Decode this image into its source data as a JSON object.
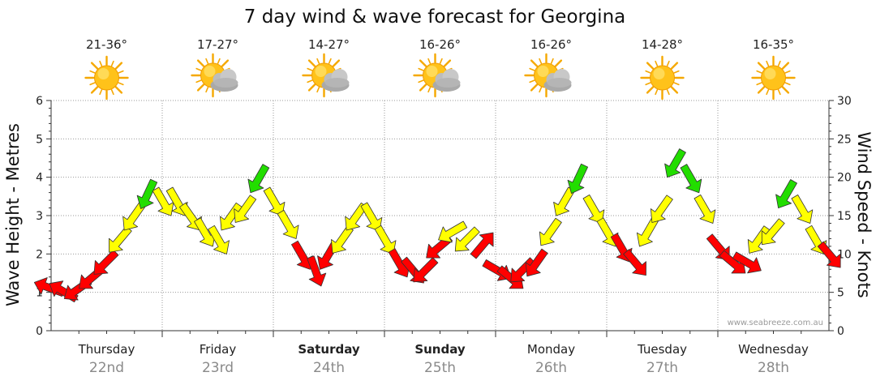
{
  "chart_data": {
    "type": "scatter",
    "title": "7 day wind & wave forecast for Georgina",
    "ylabel_left": "Wave Height - Metres",
    "ylabel_right": "Wind Speed - Knots",
    "ylim_left": [
      0,
      6
    ],
    "ylim_right": [
      0,
      30
    ],
    "left_ticks": [
      "0",
      "1",
      "2",
      "3",
      "4",
      "5",
      "6"
    ],
    "right_ticks": [
      "0",
      "5",
      "10",
      "15",
      "20",
      "25",
      "30"
    ],
    "credit": "www.seabreeze.com.au",
    "colors": {
      "low": "#ff0000",
      "mid": "#ffff00",
      "high": "#22dd00",
      "outline": "#333333"
    },
    "days": [
      {
        "name": "Thursday",
        "date": "22nd",
        "temp": "21-36°",
        "icon": "sun-icon",
        "bold": false
      },
      {
        "name": "Friday",
        "date": "23rd",
        "temp": "17-27°",
        "icon": "partly-cloudy-icon",
        "bold": false
      },
      {
        "name": "Saturday",
        "date": "24th",
        "temp": "14-27°",
        "icon": "partly-cloudy-icon",
        "bold": true
      },
      {
        "name": "Sunday",
        "date": "25th",
        "temp": "16-26°",
        "icon": "partly-cloudy-icon",
        "bold": true
      },
      {
        "name": "Monday",
        "date": "26th",
        "temp": "16-26°",
        "icon": "partly-cloudy-icon",
        "bold": false
      },
      {
        "name": "Tuesday",
        "date": "27th",
        "temp": "14-28°",
        "icon": "sun-icon",
        "bold": false
      },
      {
        "name": "Wednesday",
        "date": "28th",
        "temp": "16-35°",
        "icon": "sun-icon",
        "bold": false
      }
    ],
    "wind_series": {
      "name": "Wind speed (knots) with direction, 3-hourly",
      "points": [
        {
          "t": 0.0,
          "speed": 5.5,
          "dir": 110
        },
        {
          "t": 0.125,
          "speed": 5,
          "dir": 120
        },
        {
          "t": 0.25,
          "speed": 5.5,
          "dir": 55
        },
        {
          "t": 0.375,
          "speed": 7,
          "dir": 50
        },
        {
          "t": 0.5,
          "speed": 9,
          "dir": 45
        },
        {
          "t": 0.625,
          "speed": 12,
          "dir": 40
        },
        {
          "t": 0.75,
          "speed": 15,
          "dir": 35
        },
        {
          "t": 0.875,
          "speed": 18,
          "dir": 25
        },
        {
          "t": 1.0,
          "speed": 17,
          "dir": 330
        },
        {
          "t": 1.125,
          "speed": 17,
          "dir": 330
        },
        {
          "t": 1.25,
          "speed": 15,
          "dir": 325
        },
        {
          "t": 1.375,
          "speed": 13,
          "dir": 330
        },
        {
          "t": 1.5,
          "speed": 12,
          "dir": 330
        },
        {
          "t": 1.625,
          "speed": 15,
          "dir": 35
        },
        {
          "t": 1.75,
          "speed": 16,
          "dir": 35
        },
        {
          "t": 1.875,
          "speed": 20,
          "dir": 30
        },
        {
          "t": 2.0,
          "speed": 17,
          "dir": 330
        },
        {
          "t": 2.125,
          "speed": 14,
          "dir": 330
        },
        {
          "t": 2.25,
          "speed": 10,
          "dir": 330
        },
        {
          "t": 2.375,
          "speed": 8,
          "dir": 340
        },
        {
          "t": 2.5,
          "speed": 10,
          "dir": 30
        },
        {
          "t": 2.625,
          "speed": 12,
          "dir": 35
        },
        {
          "t": 2.75,
          "speed": 15,
          "dir": 35
        },
        {
          "t": 2.875,
          "speed": 15,
          "dir": 330
        },
        {
          "t": 3.0,
          "speed": 12,
          "dir": 330
        },
        {
          "t": 3.125,
          "speed": 9,
          "dir": 330
        },
        {
          "t": 3.25,
          "speed": 8,
          "dir": 320
        },
        {
          "t": 3.375,
          "speed": 8,
          "dir": 45
        },
        {
          "t": 3.5,
          "speed": 11,
          "dir": 50
        },
        {
          "t": 3.625,
          "speed": 13,
          "dir": 60
        },
        {
          "t": 3.75,
          "speed": 12,
          "dir": 45
        },
        {
          "t": 3.875,
          "speed": 11,
          "dir": 220
        },
        {
          "t": 4.0,
          "speed": 8,
          "dir": 300
        },
        {
          "t": 4.125,
          "speed": 7,
          "dir": 310
        },
        {
          "t": 4.25,
          "speed": 8,
          "dir": 45
        },
        {
          "t": 4.375,
          "speed": 9,
          "dir": 35
        },
        {
          "t": 4.5,
          "speed": 13,
          "dir": 35
        },
        {
          "t": 4.625,
          "speed": 17,
          "dir": 30
        },
        {
          "t": 4.75,
          "speed": 20,
          "dir": 25
        },
        {
          "t": 4.875,
          "speed": 16,
          "dir": 330
        },
        {
          "t": 5.0,
          "speed": 13,
          "dir": 330
        },
        {
          "t": 5.125,
          "speed": 11,
          "dir": 330
        },
        {
          "t": 5.25,
          "speed": 9,
          "dir": 320
        },
        {
          "t": 5.375,
          "speed": 13,
          "dir": 30
        },
        {
          "t": 5.5,
          "speed": 16,
          "dir": 35
        },
        {
          "t": 5.625,
          "speed": 22,
          "dir": 30
        },
        {
          "t": 5.75,
          "speed": 20,
          "dir": 330
        },
        {
          "t": 5.875,
          "speed": 16,
          "dir": 330
        },
        {
          "t": 6.0,
          "speed": 11,
          "dir": 320
        },
        {
          "t": 6.125,
          "speed": 9,
          "dir": 310
        },
        {
          "t": 6.25,
          "speed": 9,
          "dir": 300
        },
        {
          "t": 6.375,
          "speed": 12,
          "dir": 35
        },
        {
          "t": 6.5,
          "speed": 13,
          "dir": 40
        },
        {
          "t": 6.625,
          "speed": 18,
          "dir": 30
        },
        {
          "t": 6.75,
          "speed": 16,
          "dir": 330
        },
        {
          "t": 6.875,
          "speed": 12,
          "dir": 330
        },
        {
          "t": 7.0,
          "speed": 10,
          "dir": 320
        }
      ]
    }
  }
}
